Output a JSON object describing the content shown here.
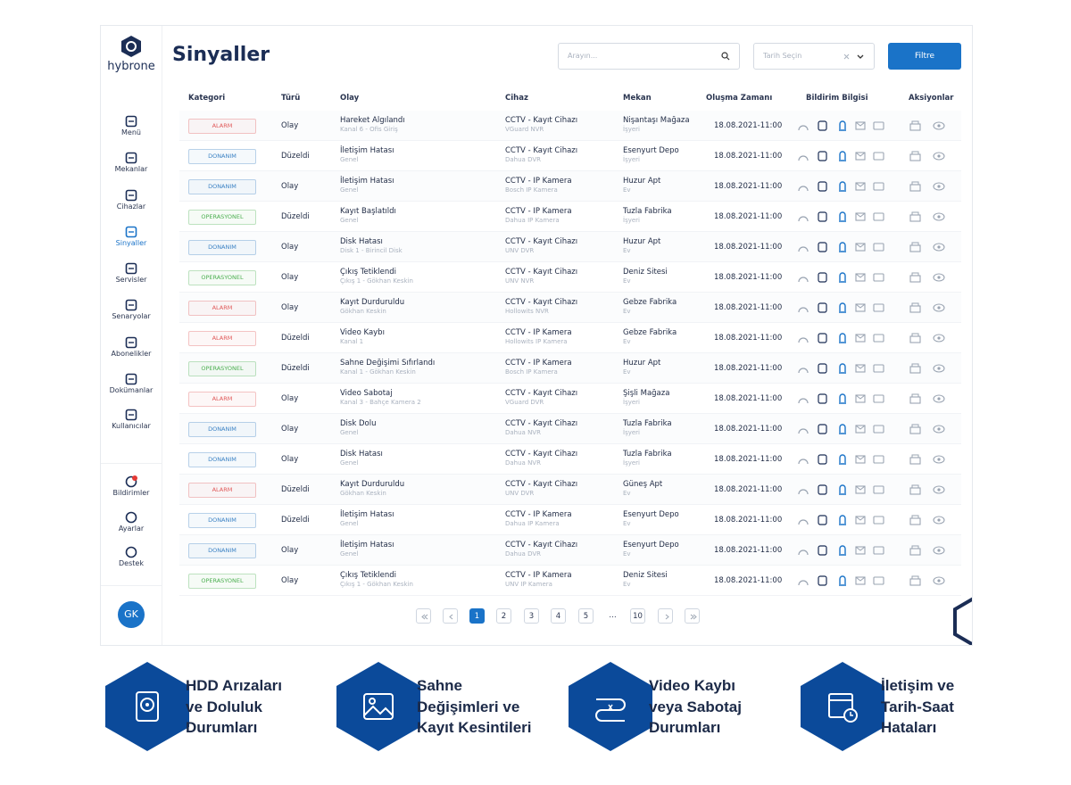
{
  "logo": "hybrone",
  "header": {
    "title": "Sinyaller",
    "search_placeholder": "Arayın...",
    "date_placeholder": "Tarih Seçin",
    "filter_button": "Filtre"
  },
  "sidebar": {
    "menu": [
      "Menü",
      "Mekanlar",
      "Cihazlar",
      "Sinyaller",
      "Servisler",
      "Senaryolar",
      "Abonelikler",
      "Dokümanlar",
      "Kullanıcılar"
    ],
    "active": "Sinyaller",
    "bottom": [
      "Bildirimler",
      "Ayarlar",
      "Destek"
    ],
    "avatar": "GK"
  },
  "table": {
    "columns": [
      "Kategori",
      "Türü",
      "Olay",
      "Cihaz",
      "Mekan",
      "Oluşma Zamanı",
      "Bildirim Bilgisi",
      "Aksiyonlar"
    ],
    "category_colors": {
      "ALARM": "#e05a5a",
      "DONANIM": "#3b82c4",
      "OPERASYONEL": "#4caf50"
    },
    "rows": [
      {
        "category": "ALARM",
        "type": "Olay",
        "event": "Hareket Algılandı",
        "event_detail": "Kanal 6 - Ofis Giriş",
        "device": "CCTV - Kayıt Cihazı",
        "device_model": "VGuard NVR",
        "location": "Nişantaşı Mağaza",
        "location_type": "İşyeri",
        "time": "18.08.2021-11:00"
      },
      {
        "category": "DONANIM",
        "type": "Düzeldi",
        "event": "İletişim Hatası",
        "event_detail": "Genel",
        "device": "CCTV - Kayıt Cihazı",
        "device_model": "Dahua DVR",
        "location": "Esenyurt Depo",
        "location_type": "İşyeri",
        "time": "18.08.2021-11:00"
      },
      {
        "category": "DONANIM",
        "type": "Olay",
        "event": "İletişim Hatası",
        "event_detail": "Genel",
        "device": "CCTV - IP Kamera",
        "device_model": "Bosch IP Kamera",
        "location": "Huzur Apt",
        "location_type": "Ev",
        "time": "18.08.2021-11:00"
      },
      {
        "category": "OPERASYONEL",
        "type": "Düzeldi",
        "event": "Kayıt Başlatıldı",
        "event_detail": "Genel",
        "device": "CCTV - IP Kamera",
        "device_model": "Dahua IP Kamera",
        "location": "Tuzla Fabrika",
        "location_type": "İşyeri",
        "time": "18.08.2021-11:00"
      },
      {
        "category": "DONANIM",
        "type": "Olay",
        "event": "Disk Hatası",
        "event_detail": "Disk 1 - Birincil Disk",
        "device": "CCTV - Kayıt Cihazı",
        "device_model": "UNV DVR",
        "location": "Huzur Apt",
        "location_type": "Ev",
        "time": "18.08.2021-11:00"
      },
      {
        "category": "OPERASYONEL",
        "type": "Olay",
        "event": "Çıkış Tetiklendi",
        "event_detail": "Çıkış 1 - Gökhan Keskin",
        "device": "CCTV - Kayıt Cihazı",
        "device_model": "UNV NVR",
        "location": "Deniz Sitesi",
        "location_type": "Ev",
        "time": "18.08.2021-11:00"
      },
      {
        "category": "ALARM",
        "type": "Olay",
        "event": "Kayıt Durduruldu",
        "event_detail": "Gökhan Keskin",
        "device": "CCTV - Kayıt Cihazı",
        "device_model": "Hollowits NVR",
        "location": "Gebze Fabrika",
        "location_type": "Ev",
        "time": "18.08.2021-11:00"
      },
      {
        "category": "ALARM",
        "type": "Düzeldi",
        "event": "Video Kaybı",
        "event_detail": "Kanal 1",
        "device": "CCTV - IP Kamera",
        "device_model": "Hollowits IP Kamera",
        "location": "Gebze Fabrika",
        "location_type": "Ev",
        "time": "18.08.2021-11:00"
      },
      {
        "category": "OPERASYONEL",
        "type": "Düzeldi",
        "event": "Sahne Değişimi Sıfırlandı",
        "event_detail": "Kanal 1 - Gökhan Keskin",
        "device": "CCTV - IP Kamera",
        "device_model": "Bosch IP Kamera",
        "location": "Huzur Apt",
        "location_type": "Ev",
        "time": "18.08.2021-11:00"
      },
      {
        "category": "ALARM",
        "type": "Olay",
        "event": "Video Sabotaj",
        "event_detail": "Kanal 3 - Bahçe Kamera 2",
        "device": "CCTV - Kayıt Cihazı",
        "device_model": "VGuard DVR",
        "location": "Şişli Mağaza",
        "location_type": "İşyeri",
        "time": "18.08.2021-11:00"
      },
      {
        "category": "DONANIM",
        "type": "Olay",
        "event": "Disk Dolu",
        "event_detail": "Genel",
        "device": "CCTV - Kayıt Cihazı",
        "device_model": "Dahua NVR",
        "location": "Tuzla Fabrika",
        "location_type": "İşyeri",
        "time": "18.08.2021-11:00"
      },
      {
        "category": "DONANIM",
        "type": "Olay",
        "event": "Disk Hatası",
        "event_detail": "Genel",
        "device": "CCTV - Kayıt Cihazı",
        "device_model": "Dahua NVR",
        "location": "Tuzla Fabrika",
        "location_type": "İşyeri",
        "time": "18.08.2021-11:00"
      },
      {
        "category": "ALARM",
        "type": "Düzeldi",
        "event": "Kayıt Durduruldu",
        "event_detail": "Gökhan Keskin",
        "device": "CCTV - Kayıt Cihazı",
        "device_model": "UNV DVR",
        "location": "Güneş Apt",
        "location_type": "Ev",
        "time": "18.08.2021-11:00"
      },
      {
        "category": "DONANIM",
        "type": "Düzeldi",
        "event": "İletişim Hatası",
        "event_detail": "Genel",
        "device": "CCTV - IP Kamera",
        "device_model": "Dahua IP Kamera",
        "location": "Esenyurt Depo",
        "location_type": "Ev",
        "time": "18.08.2021-11:00"
      },
      {
        "category": "DONANIM",
        "type": "Olay",
        "event": "İletişim Hatası",
        "event_detail": "Genel",
        "device": "CCTV - Kayıt Cihazı",
        "device_model": "Dahua DVR",
        "location": "Esenyurt Depo",
        "location_type": "Ev",
        "time": "18.08.2021-11:00"
      },
      {
        "category": "OPERASYONEL",
        "type": "Olay",
        "event": "Çıkış Tetiklendi",
        "event_detail": "Çıkış 1 - Gökhan Keskin",
        "device": "CCTV - IP Kamera",
        "device_model": "UNV IP Kamera",
        "location": "Deniz Sitesi",
        "location_type": "Ev",
        "time": "18.08.2021-11:00"
      }
    ]
  },
  "pagination": {
    "pages": [
      "1",
      "2",
      "3",
      "4",
      "5",
      "…",
      "10"
    ],
    "current": "1"
  },
  "features": [
    {
      "lines": [
        "HDD Arızaları",
        "ve Doluluk",
        "Durumları"
      ]
    },
    {
      "lines": [
        "Sahne",
        "Değişimleri ve",
        "Kayıt Kesintileri"
      ]
    },
    {
      "lines": [
        "Video Kaybı",
        "veya Sabotaj",
        "Durumları"
      ]
    },
    {
      "lines": [
        "İletişim ve",
        "Tarih-Saat",
        "Hataları"
      ]
    }
  ]
}
